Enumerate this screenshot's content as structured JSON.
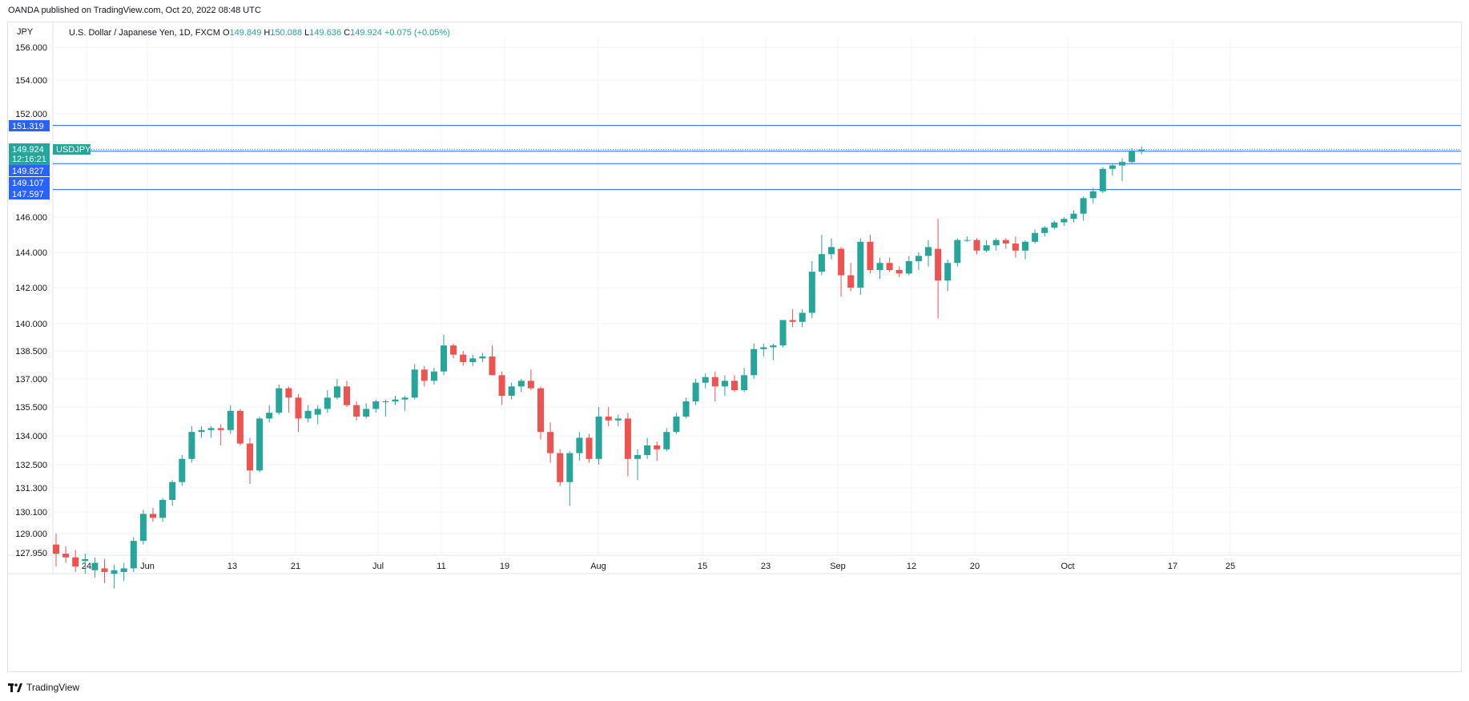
{
  "header": {
    "publisher": "OANDA published on TradingView.com, Oct 20, 2022 08:48 UTC"
  },
  "legend": {
    "title": "U.S. Dollar / Japanese Yen, 1D, FXCM",
    "open_label": "O",
    "open": "149.849",
    "high_label": "H",
    "high": "150.088",
    "low_label": "L",
    "low": "149.636",
    "close_label": "C",
    "close": "149.924",
    "change": "+0.075 (+0.05%)"
  },
  "footer": {
    "brand": "TradingView"
  },
  "colors": {
    "up": "#26a69a",
    "down": "#ef5350",
    "hline": "#2962ff",
    "grid": "#f0f3fa"
  },
  "chart_data": {
    "type": "candlestick",
    "symbol": "USDJPY",
    "axis_unit": "JPY",
    "y_ticks": [
      "156.000",
      "154.000",
      "152.000",
      "146.000",
      "144.000",
      "142.000",
      "140.000",
      "138.500",
      "137.000",
      "135.500",
      "134.000",
      "132.500",
      "131.300",
      "130.100",
      "129.000",
      "127.950"
    ],
    "x_ticks": [
      "24",
      "Jun",
      "13",
      "21",
      "Jul",
      "11",
      "19",
      "Aug",
      "15",
      "23",
      "Sep",
      "12",
      "20",
      "Oct",
      "17",
      "25"
    ],
    "current_price": {
      "value": "149.924",
      "countdown": "12:16:21",
      "symbol_label": "USDJPY"
    },
    "horizontal_lines": [
      "151.319",
      "149.827",
      "149.107",
      "147.597"
    ],
    "candles": [
      {
        "o": 128.4,
        "h": 129.0,
        "l": 127.2,
        "c": 127.9
      },
      {
        "o": 127.9,
        "h": 128.3,
        "l": 127.4,
        "c": 127.7
      },
      {
        "o": 127.7,
        "h": 128.1,
        "l": 126.9,
        "c": 127.2
      },
      {
        "o": 127.5,
        "h": 127.9,
        "l": 126.8,
        "c": 127.6
      },
      {
        "o": 127.0,
        "h": 127.7,
        "l": 126.6,
        "c": 127.4
      },
      {
        "o": 127.1,
        "h": 127.6,
        "l": 126.3,
        "c": 126.9
      },
      {
        "o": 126.8,
        "h": 127.3,
        "l": 126.0,
        "c": 127.0
      },
      {
        "o": 126.9,
        "h": 127.4,
        "l": 126.4,
        "c": 127.1
      },
      {
        "o": 127.1,
        "h": 128.8,
        "l": 126.9,
        "c": 128.6
      },
      {
        "o": 128.6,
        "h": 130.2,
        "l": 128.4,
        "c": 130.0
      },
      {
        "o": 130.0,
        "h": 130.3,
        "l": 129.6,
        "c": 129.8
      },
      {
        "o": 129.8,
        "h": 130.8,
        "l": 129.6,
        "c": 130.7
      },
      {
        "o": 130.7,
        "h": 131.7,
        "l": 130.4,
        "c": 131.6
      },
      {
        "o": 131.6,
        "h": 133.0,
        "l": 131.4,
        "c": 132.8
      },
      {
        "o": 132.8,
        "h": 134.5,
        "l": 132.6,
        "c": 134.2
      },
      {
        "o": 134.2,
        "h": 134.5,
        "l": 133.9,
        "c": 134.3
      },
      {
        "o": 134.3,
        "h": 134.5,
        "l": 133.9,
        "c": 134.4
      },
      {
        "o": 134.4,
        "h": 134.6,
        "l": 133.5,
        "c": 134.3
      },
      {
        "o": 134.3,
        "h": 135.6,
        "l": 134.1,
        "c": 135.3
      },
      {
        "o": 135.3,
        "h": 135.4,
        "l": 133.5,
        "c": 133.6
      },
      {
        "o": 133.6,
        "h": 133.9,
        "l": 131.5,
        "c": 132.2
      },
      {
        "o": 132.2,
        "h": 135.0,
        "l": 132.1,
        "c": 134.9
      },
      {
        "o": 134.9,
        "h": 135.6,
        "l": 134.7,
        "c": 135.2
      },
      {
        "o": 135.2,
        "h": 136.7,
        "l": 135.1,
        "c": 136.5
      },
      {
        "o": 136.5,
        "h": 136.6,
        "l": 135.2,
        "c": 136.0
      },
      {
        "o": 136.0,
        "h": 136.2,
        "l": 134.2,
        "c": 134.9
      },
      {
        "o": 134.9,
        "h": 135.6,
        "l": 134.7,
        "c": 135.3
      },
      {
        "o": 135.1,
        "h": 135.6,
        "l": 134.6,
        "c": 135.4
      },
      {
        "o": 135.4,
        "h": 136.4,
        "l": 135.2,
        "c": 136.0
      },
      {
        "o": 136.0,
        "h": 137.0,
        "l": 135.9,
        "c": 136.6
      },
      {
        "o": 136.6,
        "h": 136.9,
        "l": 135.5,
        "c": 135.6
      },
      {
        "o": 135.6,
        "h": 135.8,
        "l": 134.8,
        "c": 135.0
      },
      {
        "o": 135.0,
        "h": 135.7,
        "l": 134.9,
        "c": 135.4
      },
      {
        "o": 135.4,
        "h": 135.9,
        "l": 135.2,
        "c": 135.8
      },
      {
        "o": 135.8,
        "h": 135.9,
        "l": 135.0,
        "c": 135.8
      },
      {
        "o": 135.8,
        "h": 136.1,
        "l": 135.6,
        "c": 135.9
      },
      {
        "o": 135.9,
        "h": 136.1,
        "l": 135.3,
        "c": 136.0
      },
      {
        "o": 136.0,
        "h": 137.8,
        "l": 135.9,
        "c": 137.5
      },
      {
        "o": 137.5,
        "h": 137.7,
        "l": 136.6,
        "c": 136.9
      },
      {
        "o": 136.9,
        "h": 137.6,
        "l": 136.7,
        "c": 137.4
      },
      {
        "o": 137.4,
        "h": 139.4,
        "l": 137.2,
        "c": 138.8
      },
      {
        "o": 138.8,
        "h": 138.9,
        "l": 138.1,
        "c": 138.3
      },
      {
        "o": 138.3,
        "h": 138.5,
        "l": 137.7,
        "c": 137.9
      },
      {
        "o": 137.9,
        "h": 138.3,
        "l": 137.7,
        "c": 138.1
      },
      {
        "o": 138.1,
        "h": 138.4,
        "l": 137.9,
        "c": 138.2
      },
      {
        "o": 138.2,
        "h": 138.8,
        "l": 137.2,
        "c": 137.2
      },
      {
        "o": 137.2,
        "h": 137.4,
        "l": 135.6,
        "c": 136.1
      },
      {
        "o": 136.1,
        "h": 136.8,
        "l": 135.9,
        "c": 136.6
      },
      {
        "o": 136.6,
        "h": 137.0,
        "l": 136.3,
        "c": 136.9
      },
      {
        "o": 136.9,
        "h": 137.5,
        "l": 136.4,
        "c": 136.5
      },
      {
        "o": 136.5,
        "h": 136.6,
        "l": 133.8,
        "c": 134.2
      },
      {
        "o": 134.2,
        "h": 134.7,
        "l": 132.6,
        "c": 133.1
      },
      {
        "o": 133.1,
        "h": 133.3,
        "l": 131.4,
        "c": 131.6
      },
      {
        "o": 131.6,
        "h": 133.2,
        "l": 130.4,
        "c": 133.1
      },
      {
        "o": 133.1,
        "h": 134.2,
        "l": 132.7,
        "c": 133.9
      },
      {
        "o": 133.9,
        "h": 134.1,
        "l": 132.6,
        "c": 132.8
      },
      {
        "o": 132.8,
        "h": 135.5,
        "l": 132.5,
        "c": 135.0
      },
      {
        "o": 135.0,
        "h": 135.5,
        "l": 134.5,
        "c": 134.8
      },
      {
        "o": 134.8,
        "h": 135.1,
        "l": 134.5,
        "c": 134.9
      },
      {
        "o": 134.9,
        "h": 135.2,
        "l": 131.9,
        "c": 132.8
      },
      {
        "o": 132.8,
        "h": 133.3,
        "l": 131.7,
        "c": 133.0
      },
      {
        "o": 133.0,
        "h": 133.9,
        "l": 132.8,
        "c": 133.5
      },
      {
        "o": 133.5,
        "h": 133.7,
        "l": 132.7,
        "c": 133.3
      },
      {
        "o": 133.3,
        "h": 134.4,
        "l": 133.2,
        "c": 134.2
      },
      {
        "o": 134.2,
        "h": 135.2,
        "l": 134.1,
        "c": 135.0
      },
      {
        "o": 135.0,
        "h": 136.0,
        "l": 134.9,
        "c": 135.8
      },
      {
        "o": 135.8,
        "h": 137.0,
        "l": 135.6,
        "c": 136.8
      },
      {
        "o": 136.8,
        "h": 137.3,
        "l": 136.5,
        "c": 137.1
      },
      {
        "o": 137.1,
        "h": 137.4,
        "l": 135.8,
        "c": 136.6
      },
      {
        "o": 136.6,
        "h": 137.2,
        "l": 136.1,
        "c": 136.9
      },
      {
        "o": 136.9,
        "h": 137.2,
        "l": 136.3,
        "c": 136.4
      },
      {
        "o": 136.4,
        "h": 137.6,
        "l": 136.3,
        "c": 137.2
      },
      {
        "o": 137.2,
        "h": 138.9,
        "l": 137.0,
        "c": 138.6
      },
      {
        "o": 138.6,
        "h": 138.9,
        "l": 138.2,
        "c": 138.7
      },
      {
        "o": 138.7,
        "h": 138.9,
        "l": 138.0,
        "c": 138.8
      },
      {
        "o": 138.8,
        "h": 140.2,
        "l": 138.7,
        "c": 140.2
      },
      {
        "o": 140.2,
        "h": 140.8,
        "l": 139.8,
        "c": 140.1
      },
      {
        "o": 140.1,
        "h": 140.8,
        "l": 139.8,
        "c": 140.6
      },
      {
        "o": 140.6,
        "h": 143.5,
        "l": 140.3,
        "c": 142.9
      },
      {
        "o": 142.9,
        "h": 145.0,
        "l": 142.7,
        "c": 143.9
      },
      {
        "o": 143.9,
        "h": 144.8,
        "l": 143.6,
        "c": 144.3
      },
      {
        "o": 144.2,
        "h": 144.3,
        "l": 141.5,
        "c": 142.7
      },
      {
        "o": 142.7,
        "h": 143.4,
        "l": 141.8,
        "c": 142.0
      },
      {
        "o": 142.0,
        "h": 144.8,
        "l": 141.6,
        "c": 144.6
      },
      {
        "o": 144.6,
        "h": 145.0,
        "l": 142.8,
        "c": 143.0
      },
      {
        "o": 143.0,
        "h": 143.7,
        "l": 142.5,
        "c": 143.4
      },
      {
        "o": 143.4,
        "h": 143.7,
        "l": 142.9,
        "c": 143.0
      },
      {
        "o": 143.0,
        "h": 143.2,
        "l": 142.6,
        "c": 142.8
      },
      {
        "o": 142.8,
        "h": 143.8,
        "l": 142.7,
        "c": 143.5
      },
      {
        "o": 143.5,
        "h": 144.0,
        "l": 143.0,
        "c": 143.8
      },
      {
        "o": 143.8,
        "h": 144.7,
        "l": 143.2,
        "c": 144.3
      },
      {
        "o": 144.2,
        "h": 145.9,
        "l": 140.3,
        "c": 142.4
      },
      {
        "o": 142.4,
        "h": 143.6,
        "l": 141.8,
        "c": 143.4
      },
      {
        "o": 143.4,
        "h": 144.8,
        "l": 143.2,
        "c": 144.7
      },
      {
        "o": 144.7,
        "h": 144.9,
        "l": 144.6,
        "c": 144.7
      },
      {
        "o": 144.7,
        "h": 144.8,
        "l": 143.9,
        "c": 144.1
      },
      {
        "o": 144.1,
        "h": 144.7,
        "l": 144.0,
        "c": 144.4
      },
      {
        "o": 144.4,
        "h": 144.8,
        "l": 144.1,
        "c": 144.7
      },
      {
        "o": 144.7,
        "h": 144.8,
        "l": 144.2,
        "c": 144.5
      },
      {
        "o": 144.5,
        "h": 144.9,
        "l": 143.7,
        "c": 144.1
      },
      {
        "o": 144.1,
        "h": 144.7,
        "l": 143.6,
        "c": 144.6
      },
      {
        "o": 144.6,
        "h": 145.3,
        "l": 144.5,
        "c": 145.1
      },
      {
        "o": 145.1,
        "h": 145.5,
        "l": 144.9,
        "c": 145.4
      },
      {
        "o": 145.4,
        "h": 145.8,
        "l": 145.3,
        "c": 145.7
      },
      {
        "o": 145.7,
        "h": 146.0,
        "l": 145.5,
        "c": 145.9
      },
      {
        "o": 145.9,
        "h": 146.4,
        "l": 145.7,
        "c": 146.2
      },
      {
        "o": 146.2,
        "h": 147.2,
        "l": 145.8,
        "c": 147.1
      },
      {
        "o": 147.1,
        "h": 147.7,
        "l": 146.8,
        "c": 147.5
      },
      {
        "o": 147.5,
        "h": 148.9,
        "l": 147.4,
        "c": 148.8
      },
      {
        "o": 148.8,
        "h": 149.1,
        "l": 148.4,
        "c": 149.0
      },
      {
        "o": 149.0,
        "h": 149.4,
        "l": 148.1,
        "c": 149.2
      },
      {
        "o": 149.2,
        "h": 150.0,
        "l": 149.1,
        "c": 149.85
      },
      {
        "o": 149.85,
        "h": 150.09,
        "l": 149.64,
        "c": 149.92
      }
    ]
  }
}
